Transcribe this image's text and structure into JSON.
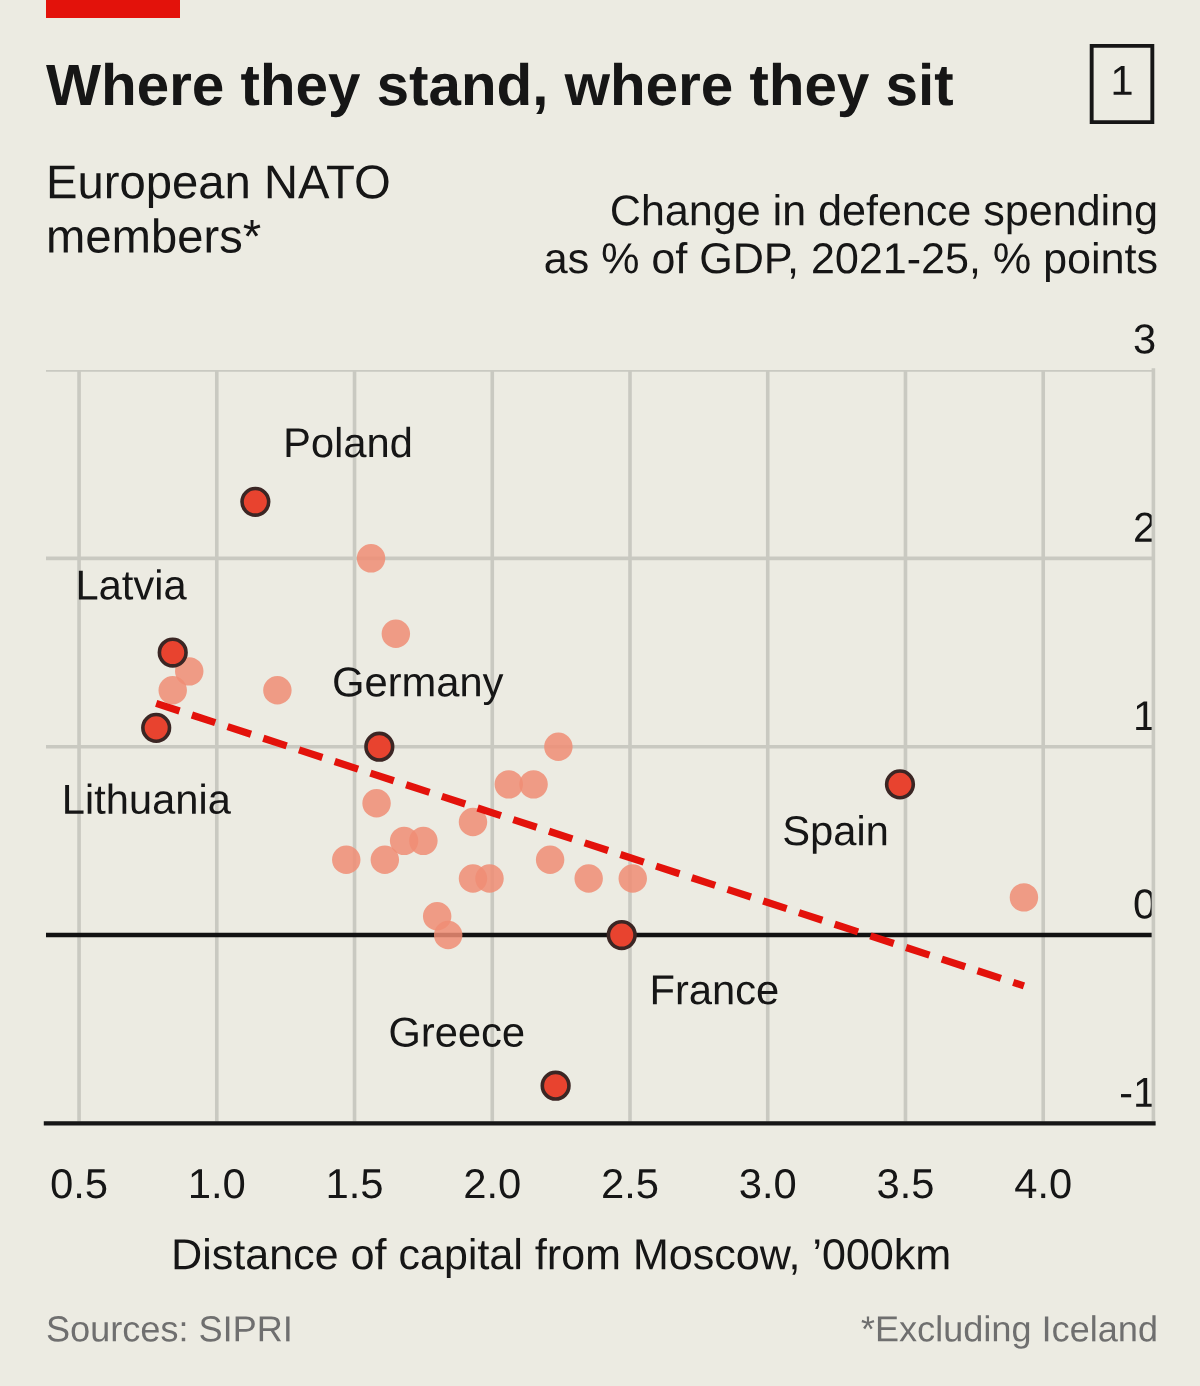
{
  "chart_data": {
    "type": "scatter",
    "title": "Where they stand, where they sit",
    "subtitle": "European NATO\nmembers*",
    "ylabel": "Change in defence spending\nas % of GDP, 2021-25, % points",
    "xlabel": "Distance of capital from Moscow, ’000km",
    "xlim": [
      0.38,
      4.4
    ],
    "xticks": [
      0.5,
      {
        "value": 1,
        "label": "1.0"
      },
      1.5,
      {
        "value": 2,
        "label": "2.0"
      },
      2.5,
      {
        "value": 3,
        "label": "3.0"
      },
      3.5,
      {
        "value": 4,
        "label": "4.0"
      }
    ],
    "ylim": [
      -1,
      3
    ],
    "yticks": [
      -1,
      0,
      1,
      2,
      3
    ],
    "grid": true,
    "marker": "circle",
    "ref_lines": [
      {
        "axis": "y",
        "value": 0,
        "color": "#121212"
      }
    ],
    "series": [
      {
        "color": "#f08d74",
        "x": [
          1.56,
          1.65,
          0.9,
          0.84,
          1.22,
          2.24,
          2.06,
          2.15,
          1.58,
          1.93,
          1.68,
          1.75,
          1.47,
          1.61,
          2.21,
          1.93,
          1.99,
          2.35,
          2.51,
          1.8,
          1.84,
          3.93
        ],
        "values": [
          2.0,
          1.6,
          1.4,
          1.3,
          1.3,
          1.0,
          0.8,
          0.8,
          0.7,
          0.6,
          0.5,
          0.5,
          0.4,
          0.4,
          0.4,
          0.3,
          0.3,
          0.3,
          0.3,
          0.1,
          0.0,
          0.2
        ]
      },
      {
        "type": "line",
        "color": "#e3120b",
        "x": [
          0.78,
          3.93
        ],
        "values": [
          1.23,
          -0.27
        ],
        "line_style": "dashed",
        "marker": "none"
      },
      {
        "color": "#e8432f",
        "x": [
          1.14,
          0.84,
          0.78,
          1.59,
          3.48,
          2.47,
          2.23
        ],
        "values": [
          2.3,
          1.5,
          1.1,
          1.0,
          0.8,
          0.0,
          -0.8
        ]
      }
    ],
    "annotations": [
      "1",
      "Sources: SIPRI",
      "*Excluding Iceland",
      {
        "text": "Poland",
        "x": 1.14,
        "y": 2.3
      },
      {
        "text": "Latvia",
        "x": 0.84,
        "y": 1.5
      },
      {
        "text": "Lithuania",
        "x": 0.78,
        "y": 1.1
      },
      {
        "text": "Germany",
        "x": 1.59,
        "y": 1.0
      },
      {
        "text": "Spain",
        "x": 3.48,
        "y": 0.8
      },
      {
        "text": "France",
        "x": 2.47,
        "y": 0.0
      },
      {
        "text": "Greece",
        "x": 2.23,
        "y": -0.8
      }
    ]
  }
}
